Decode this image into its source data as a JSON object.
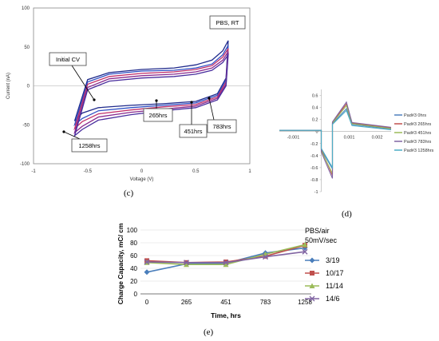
{
  "panel_labels": {
    "c": "(c)",
    "d": "(d)",
    "e": "(e)"
  },
  "chart_data": [
    {
      "id": "c",
      "type": "line",
      "title": "",
      "xlabel": "Voltage (V)",
      "ylabel": "Current (nA)",
      "xlim": [
        -1,
        1
      ],
      "ylim": [
        -100,
        100
      ],
      "xticks": [
        "-1",
        "-0.5",
        "0",
        "0.5",
        "1"
      ],
      "yticks": [
        "100",
        "50",
        "0",
        "-50",
        "-100"
      ],
      "xtick_values": [
        -1,
        -0.5,
        0,
        0.5,
        1
      ],
      "ytick_values": [
        100,
        50,
        0,
        -50,
        -100
      ],
      "corner_label": "PBS, RT",
      "annotations": [
        "Initial CV",
        "1258hrs",
        "265hrs",
        "451hrs",
        "783hrs"
      ],
      "series": [
        {
          "color": "#1f2a8c",
          "upper": [
            [
              -0.62,
              -45
            ],
            [
              -0.5,
              8
            ],
            [
              -0.3,
              17
            ],
            [
              0,
              21
            ],
            [
              0.3,
              23
            ],
            [
              0.5,
              27
            ],
            [
              0.65,
              33
            ],
            [
              0.75,
              45
            ],
            [
              0.8,
              58
            ]
          ],
          "lower": [
            [
              0.8,
              58
            ],
            [
              0.78,
              10
            ],
            [
              0.7,
              -10
            ],
            [
              0.5,
              -20
            ],
            [
              0.2,
              -23
            ],
            [
              -0.1,
              -25
            ],
            [
              -0.4,
              -28
            ],
            [
              -0.55,
              -35
            ],
            [
              -0.62,
              -45
            ]
          ]
        },
        {
          "color": "#2e4fc4",
          "upper": [
            [
              -0.62,
              -50
            ],
            [
              -0.5,
              5
            ],
            [
              -0.3,
              15
            ],
            [
              0,
              19
            ],
            [
              0.3,
              20
            ],
            [
              0.5,
              23
            ],
            [
              0.65,
              28
            ],
            [
              0.75,
              40
            ],
            [
              0.8,
              52
            ]
          ],
          "lower": [
            [
              0.8,
              52
            ],
            [
              0.78,
              8
            ],
            [
              0.7,
              -12
            ],
            [
              0.5,
              -22
            ],
            [
              0.2,
              -25
            ],
            [
              -0.1,
              -28
            ],
            [
              -0.4,
              -32
            ],
            [
              -0.55,
              -42
            ],
            [
              -0.62,
              -50
            ]
          ]
        },
        {
          "color": "#c0306a",
          "upper": [
            [
              -0.62,
              -55
            ],
            [
              -0.5,
              2
            ],
            [
              -0.3,
              12
            ],
            [
              0,
              16
            ],
            [
              0.3,
              18
            ],
            [
              0.5,
              21
            ],
            [
              0.65,
              26
            ],
            [
              0.75,
              37
            ],
            [
              0.8,
              48
            ]
          ],
          "lower": [
            [
              0.8,
              48
            ],
            [
              0.78,
              5
            ],
            [
              0.7,
              -14
            ],
            [
              0.5,
              -24
            ],
            [
              0.2,
              -27
            ],
            [
              -0.1,
              -31
            ],
            [
              -0.4,
              -36
            ],
            [
              -0.55,
              -46
            ],
            [
              -0.62,
              -55
            ]
          ]
        },
        {
          "color": "#8a2b8f",
          "upper": [
            [
              -0.62,
              -60
            ],
            [
              -0.5,
              -2
            ],
            [
              -0.3,
              9
            ],
            [
              0,
              13
            ],
            [
              0.3,
              15
            ],
            [
              0.5,
              18
            ],
            [
              0.65,
              23
            ],
            [
              0.75,
              33
            ],
            [
              0.8,
              44
            ]
          ],
          "lower": [
            [
              0.8,
              44
            ],
            [
              0.78,
              2
            ],
            [
              0.7,
              -16
            ],
            [
              0.5,
              -26
            ],
            [
              0.2,
              -30
            ],
            [
              -0.1,
              -34
            ],
            [
              -0.4,
              -40
            ],
            [
              -0.55,
              -52
            ],
            [
              -0.62,
              -60
            ]
          ]
        },
        {
          "color": "#4a2f9e",
          "upper": [
            [
              -0.62,
              -64
            ],
            [
              -0.5,
              -5
            ],
            [
              -0.3,
              6
            ],
            [
              0,
              10
            ],
            [
              0.3,
              12
            ],
            [
              0.5,
              15
            ],
            [
              0.65,
              20
            ],
            [
              0.75,
              30
            ],
            [
              0.8,
              40
            ]
          ],
          "lower": [
            [
              0.8,
              40
            ],
            [
              0.78,
              0
            ],
            [
              0.7,
              -18
            ],
            [
              0.5,
              -28
            ],
            [
              0.2,
              -32
            ],
            [
              -0.1,
              -37
            ],
            [
              -0.4,
              -44
            ],
            [
              -0.55,
              -56
            ],
            [
              -0.62,
              -64
            ]
          ]
        }
      ]
    },
    {
      "id": "d",
      "type": "line",
      "xlim": [
        -0.0015,
        0.0025
      ],
      "ylim": [
        -1,
        0.7
      ],
      "xticks": [
        "-0.001",
        "0.001",
        "0.002"
      ],
      "xtick_values": [
        -0.001,
        0.001,
        0.002
      ],
      "yticks": [
        "0.6",
        "0.4",
        "0.2",
        "0",
        "-0.2",
        "-0.4",
        "-0.6",
        "-0.8",
        "-1"
      ],
      "ytick_values": [
        0.6,
        0.4,
        0.2,
        0,
        -0.2,
        -0.4,
        -0.6,
        -0.8,
        -1
      ],
      "series": [
        {
          "name": "Pad#3 0hrs",
          "color": "#4f81bd",
          "points": [
            [
              -0.0015,
              0.02
            ],
            [
              0,
              0.02
            ],
            [
              0,
              -0.3
            ],
            [
              0.0004,
              -0.62
            ],
            [
              0.0004,
              0.13
            ],
            [
              0.0009,
              0.38
            ],
            [
              0.0011,
              0.12
            ],
            [
              0.0025,
              0.04
            ]
          ]
        },
        {
          "name": "Pad#3 265hrs",
          "color": "#c0504d",
          "points": [
            [
              -0.0015,
              0.02
            ],
            [
              0,
              0.02
            ],
            [
              0,
              -0.3
            ],
            [
              0.0004,
              -0.73
            ],
            [
              0.0004,
              0.15
            ],
            [
              0.0009,
              0.46
            ],
            [
              0.0011,
              0.14
            ],
            [
              0.0025,
              0.06
            ]
          ]
        },
        {
          "name": "Pad#3 451hrs",
          "color": "#9bbb59",
          "points": [
            [
              -0.0015,
              0.02
            ],
            [
              0,
              0.02
            ],
            [
              0,
              -0.32
            ],
            [
              0.0004,
              -0.7
            ],
            [
              0.0004,
              0.14
            ],
            [
              0.0009,
              0.43
            ],
            [
              0.0011,
              0.13
            ],
            [
              0.0025,
              0.05
            ]
          ]
        },
        {
          "name": "Pad#3 783hrs",
          "color": "#8064a2",
          "points": [
            [
              -0.0015,
              0.02
            ],
            [
              0,
              0.02
            ],
            [
              0,
              -0.34
            ],
            [
              0.0004,
              -0.78
            ],
            [
              0.0004,
              0.16
            ],
            [
              0.0009,
              0.49
            ],
            [
              0.0011,
              0.15
            ],
            [
              0.0025,
              0.07
            ]
          ]
        },
        {
          "name": "Pad#3 1258hrs",
          "color": "#4bacc6",
          "points": [
            [
              -0.0015,
              0.02
            ],
            [
              0,
              0.02
            ],
            [
              0,
              -0.28
            ],
            [
              0.0004,
              -0.6
            ],
            [
              0.0004,
              0.12
            ],
            [
              0.0009,
              0.35
            ],
            [
              0.0011,
              0.1
            ],
            [
              0.0025,
              0.03
            ]
          ]
        }
      ]
    },
    {
      "id": "e",
      "type": "line",
      "xlabel": "Time, hrs",
      "ylabel": "Charge Capacity, mC/ cm2",
      "categories": [
        "0",
        "265",
        "451",
        "783",
        "1258"
      ],
      "ylim": [
        0,
        100
      ],
      "yticks": [
        "0",
        "20",
        "40",
        "60",
        "80",
        "100"
      ],
      "ytick_values": [
        0,
        20,
        40,
        60,
        80,
        100
      ],
      "legend_title": [
        "PBS/air",
        "50mV/sec"
      ],
      "series": [
        {
          "name": "3/19",
          "color": "#4a7ebb",
          "marker": "diamond",
          "values": [
            34,
            47,
            48,
            64,
            72
          ]
        },
        {
          "name": "10/17",
          "color": "#c0504d",
          "marker": "square",
          "values": [
            52,
            49,
            50,
            59,
            76
          ]
        },
        {
          "name": "11/14",
          "color": "#9bbb59",
          "marker": "triangle",
          "values": [
            49,
            46,
            46,
            62,
            77
          ]
        },
        {
          "name": "14/6",
          "color": "#8064a2",
          "marker": "x",
          "values": [
            50,
            49,
            49,
            58,
            66
          ]
        }
      ]
    }
  ]
}
